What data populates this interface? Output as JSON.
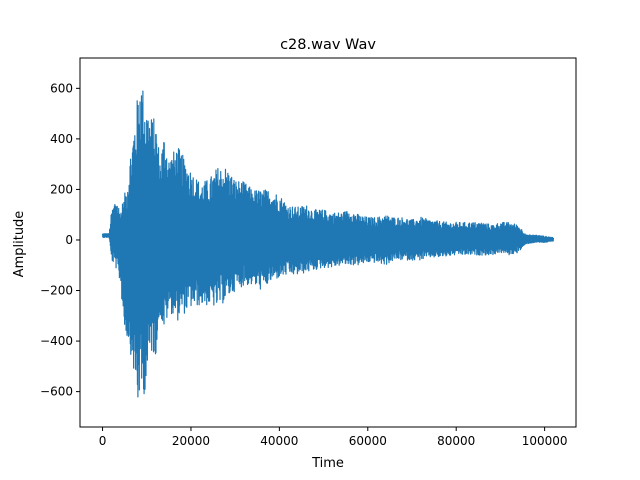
{
  "chart_data": {
    "type": "line",
    "title": "c28.wav Wav",
    "xlabel": "Time",
    "ylabel": "Amplitude",
    "xlim": [
      -5100,
      107100
    ],
    "ylim": [
      -740,
      720
    ],
    "x_ticks": [
      0,
      20000,
      40000,
      60000,
      80000,
      100000
    ],
    "x_tick_labels": [
      "0",
      "20000",
      "40000",
      "60000",
      "80000",
      "100000"
    ],
    "y_ticks": [
      -600,
      -400,
      -200,
      0,
      200,
      400,
      600
    ],
    "y_tick_labels": [
      "−600",
      "−400",
      "−200",
      "0",
      "200",
      "400",
      "600"
    ],
    "grid": false,
    "series": [
      {
        "color": "#1f77b4",
        "x_start": 0,
        "x_end": 102000,
        "envelope_x": [
          0,
          1500,
          2000,
          3000,
          4000,
          5000,
          6000,
          7000,
          8000,
          8500,
          9000,
          10000,
          11000,
          12000,
          13000,
          14000,
          15000,
          17000,
          18000,
          20000,
          22000,
          24000,
          26000,
          28000,
          30000,
          32000,
          34000,
          36000,
          38000,
          40000,
          42000,
          44000,
          46000,
          48000,
          50000,
          52000,
          54000,
          56000,
          58000,
          60000,
          62000,
          64000,
          66000,
          68000,
          70000,
          72000,
          74000,
          76000,
          78000,
          80000,
          82000,
          84000,
          86000,
          88000,
          90000,
          92000,
          94000,
          96000,
          98000,
          100000,
          102000
        ],
        "envelope_max": [
          25,
          25,
          110,
          170,
          120,
          180,
          310,
          450,
          580,
          660,
          620,
          540,
          490,
          480,
          330,
          430,
          330,
          370,
          340,
          280,
          230,
          240,
          290,
          290,
          240,
          230,
          200,
          200,
          200,
          180,
          140,
          130,
          140,
          120,
          120,
          110,
          110,
          120,
          100,
          90,
          90,
          100,
          90,
          90,
          80,
          90,
          80,
          75,
          70,
          70,
          70,
          70,
          70,
          60,
          70,
          70,
          60,
          20,
          20,
          15,
          10
        ],
        "envelope_min": [
          10,
          10,
          -80,
          -110,
          -170,
          -360,
          -410,
          -520,
          -670,
          -600,
          -640,
          -570,
          -450,
          -460,
          -300,
          -370,
          -280,
          -320,
          -300,
          -270,
          -260,
          -260,
          -270,
          -240,
          -200,
          -180,
          -180,
          -200,
          -170,
          -150,
          -140,
          -140,
          -130,
          -120,
          -110,
          -110,
          -100,
          -100,
          -100,
          -90,
          -90,
          -100,
          -80,
          -80,
          -80,
          -80,
          -70,
          -70,
          -65,
          -60,
          -60,
          -60,
          -60,
          -60,
          -50,
          -60,
          -50,
          -15,
          -10,
          -10,
          -5
        ]
      }
    ]
  }
}
